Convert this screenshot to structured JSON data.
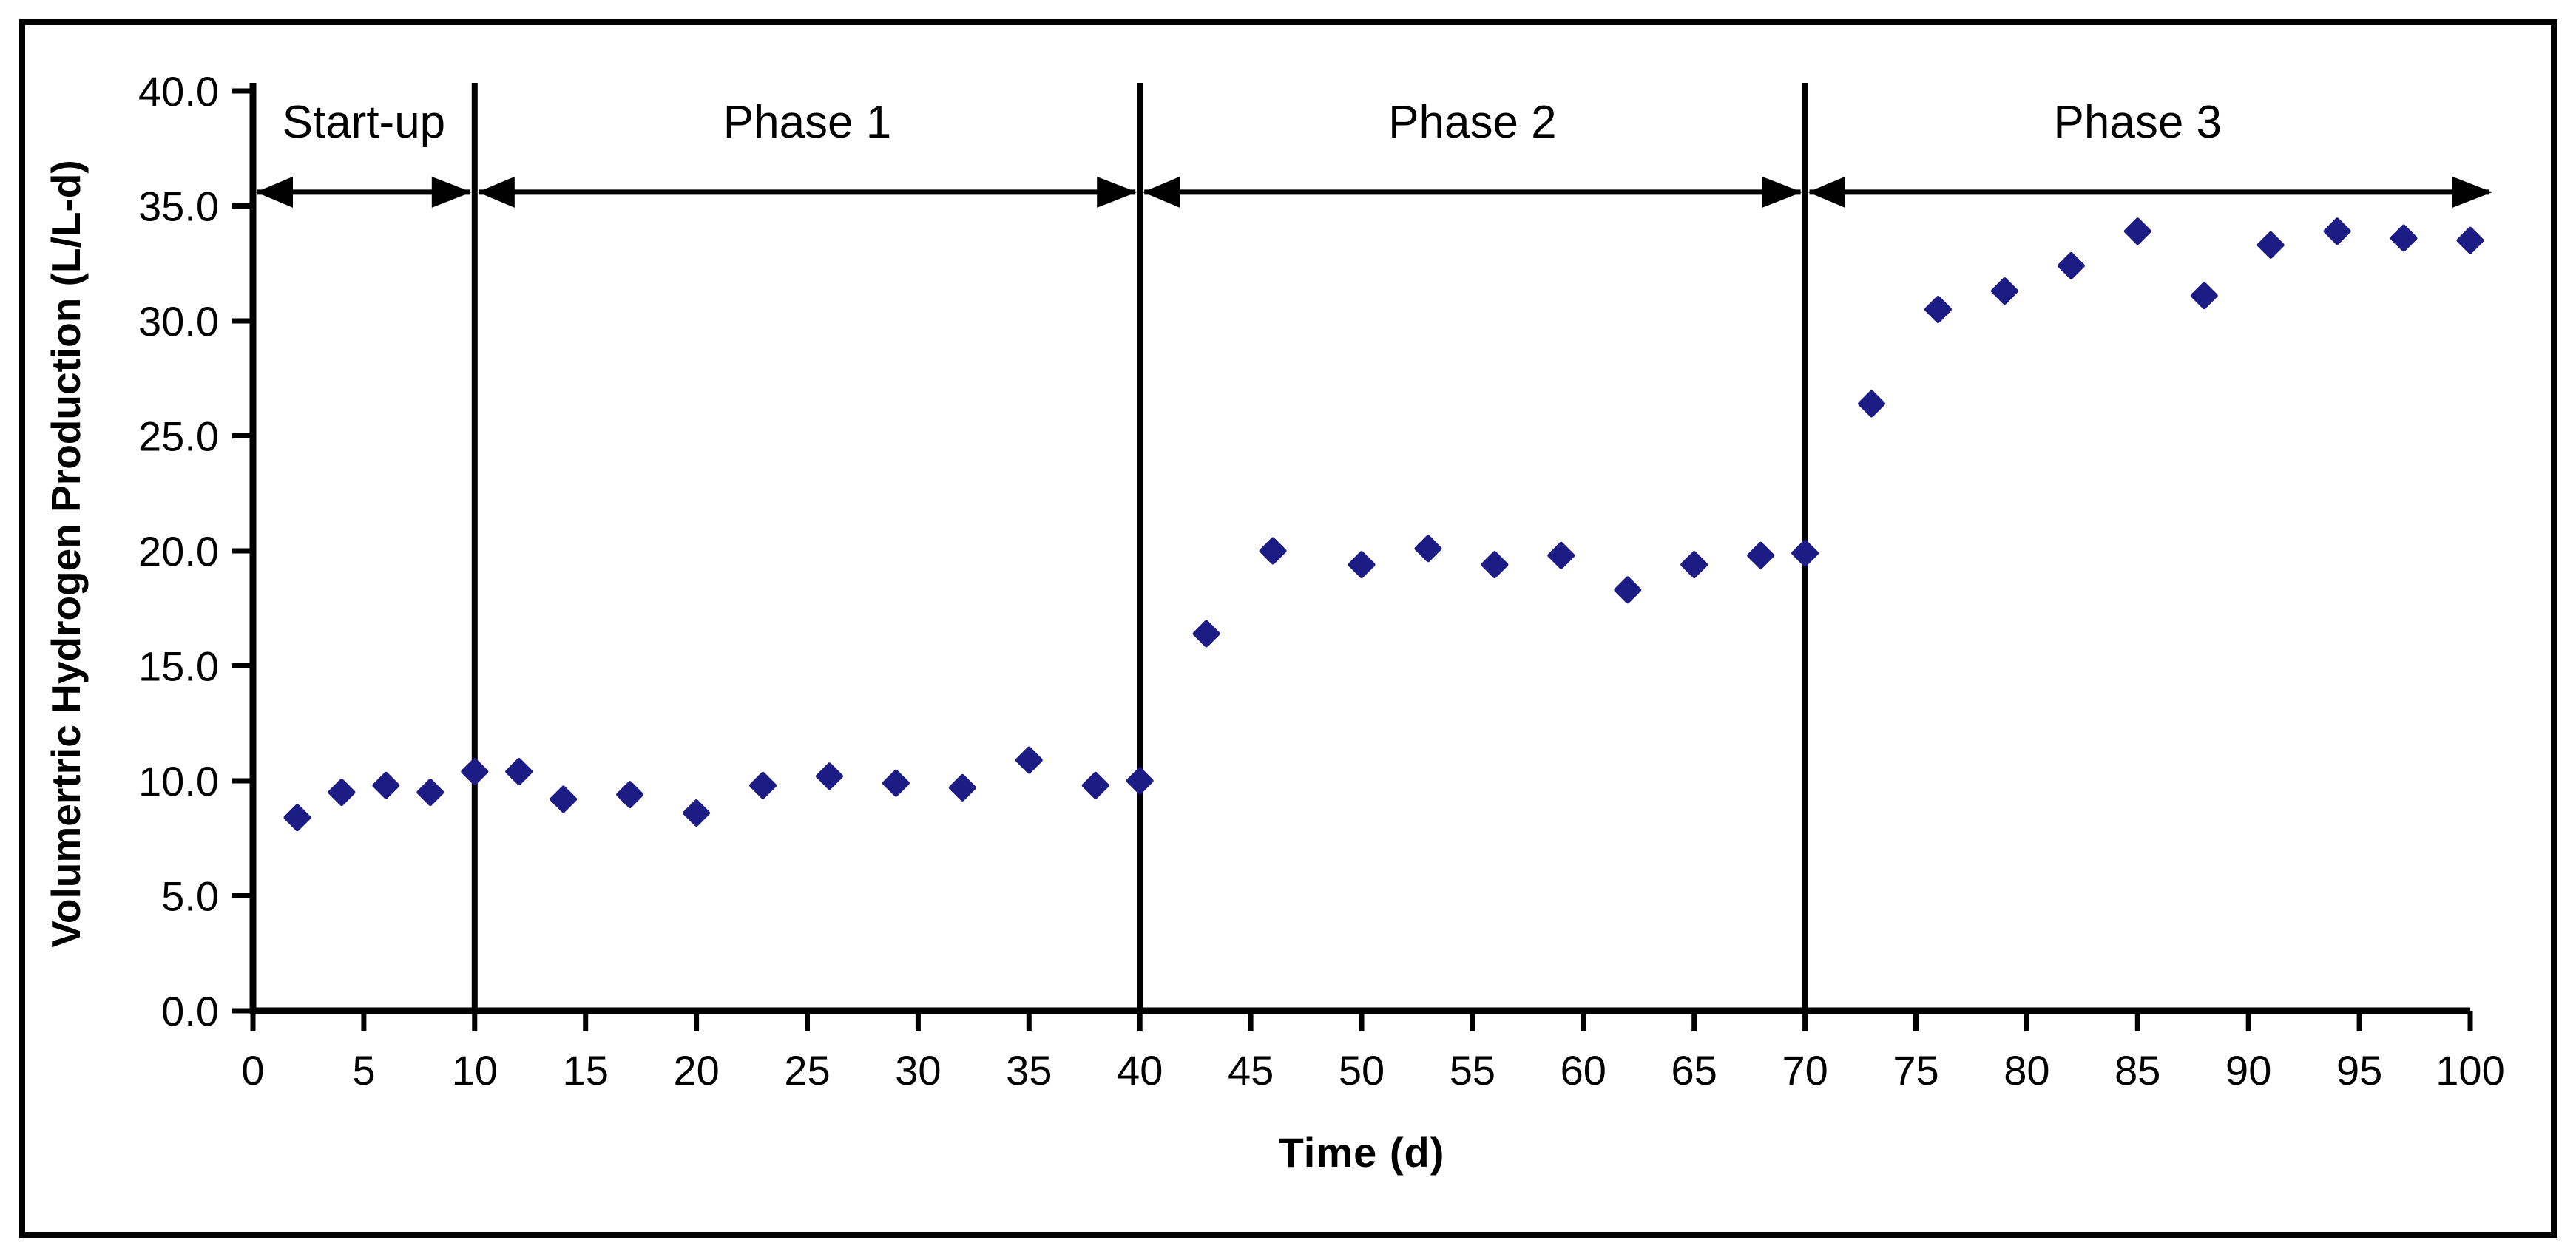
{
  "chart_data": {
    "type": "scatter",
    "title": "",
    "xlabel": "Time (d)",
    "ylabel": "Volumertric Hydrogen Production (L/L-d)",
    "xlim": [
      0,
      100
    ],
    "ylim": [
      0,
      40
    ],
    "grid": false,
    "legend_position": "none",
    "x_tick_labels": [
      "0",
      "5",
      "10",
      "15",
      "20",
      "25",
      "30",
      "35",
      "40",
      "45",
      "50",
      "55",
      "60",
      "65",
      "70",
      "75",
      "80",
      "85",
      "90",
      "95",
      "100"
    ],
    "x_tick_values": [
      0,
      5,
      10,
      15,
      20,
      25,
      30,
      35,
      40,
      45,
      50,
      55,
      60,
      65,
      70,
      75,
      80,
      85,
      90,
      95,
      100
    ],
    "y_tick_labels": [
      "0.0",
      "5.0",
      "10.0",
      "15.0",
      "20.0",
      "25.0",
      "30.0",
      "35.0",
      "40.0"
    ],
    "y_tick_values": [
      0,
      5,
      10,
      15,
      20,
      25,
      30,
      35,
      40
    ],
    "marker": {
      "shape": "diamond",
      "color": "#1c1c84",
      "half_size_px": 16
    },
    "axis_color": "#000000",
    "series": [
      {
        "name": "volumetric-hydrogen-production",
        "points": [
          [
            2,
            8.4
          ],
          [
            4,
            9.5
          ],
          [
            6,
            9.8
          ],
          [
            8,
            9.5
          ],
          [
            10,
            10.4
          ],
          [
            12,
            10.4
          ],
          [
            14,
            9.2
          ],
          [
            17,
            9.4
          ],
          [
            20,
            8.6
          ],
          [
            23,
            9.8
          ],
          [
            26,
            10.2
          ],
          [
            29,
            9.9
          ],
          [
            32,
            9.7
          ],
          [
            35,
            10.9
          ],
          [
            38,
            9.8
          ],
          [
            40,
            10.0
          ],
          [
            43,
            16.4
          ],
          [
            46,
            20.0
          ],
          [
            50,
            19.4
          ],
          [
            53,
            20.1
          ],
          [
            56,
            19.4
          ],
          [
            59,
            19.8
          ],
          [
            62,
            18.3
          ],
          [
            65,
            19.4
          ],
          [
            68,
            19.8
          ],
          [
            70,
            19.9
          ],
          [
            73,
            26.4
          ],
          [
            76,
            30.5
          ],
          [
            79,
            31.3
          ],
          [
            82,
            32.4
          ],
          [
            85,
            33.9
          ],
          [
            88,
            31.1
          ],
          [
            91,
            33.3
          ],
          [
            94,
            33.9
          ],
          [
            97,
            33.6
          ],
          [
            100,
            33.5
          ]
        ]
      }
    ],
    "phases": [
      {
        "label": "Start-up",
        "start_day": 0,
        "end_day": 10
      },
      {
        "label": "Phase 1",
        "start_day": 10,
        "end_day": 40
      },
      {
        "label": "Phase 2",
        "start_day": 40,
        "end_day": 70
      },
      {
        "label": "Phase 3",
        "start_day": 70,
        "end_day": 100
      }
    ],
    "phase_divider_days": [
      10,
      40,
      70
    ],
    "phase_arrow_y_value": 35.6
  }
}
